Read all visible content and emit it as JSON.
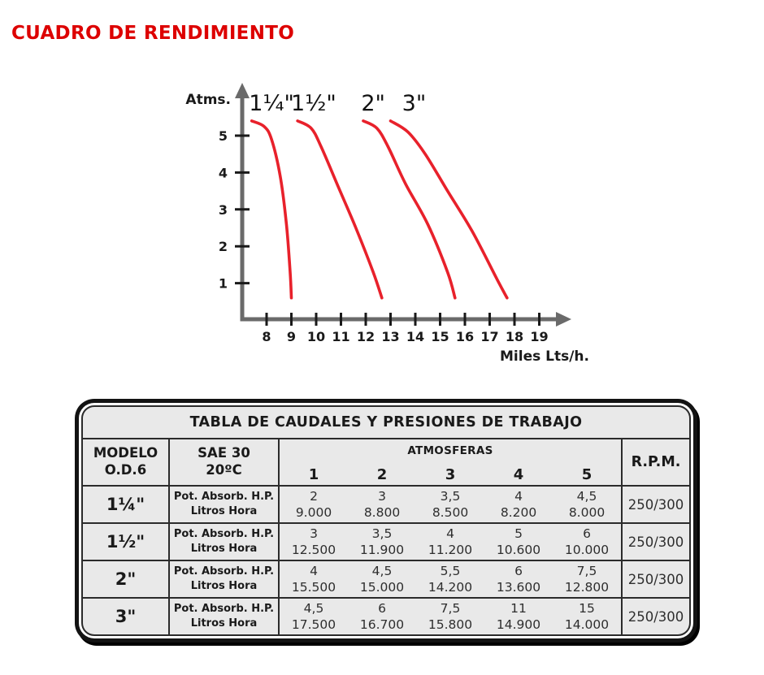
{
  "page": {
    "title": "CUADRO DE RENDIMIENTO"
  },
  "colors": {
    "accent_red": "#dd0000",
    "curve_red": "#e8212b",
    "axis_gray": "#6a6a6a",
    "text_dark": "#1a1a1a"
  },
  "chart_data": {
    "type": "line",
    "title": "",
    "ylabel": "Atms.",
    "xlabel": "Miles Lts/h.",
    "y_ticks": [
      1,
      2,
      3,
      4,
      5
    ],
    "x_ticks": [
      8,
      9,
      10,
      11,
      12,
      13,
      14,
      15,
      16,
      17,
      18,
      19
    ],
    "ylim": [
      0,
      5.8
    ],
    "xlim": [
      7,
      20
    ],
    "grid": false,
    "legend_position": "labels-above-curves",
    "series": [
      {
        "name": "1¼\"",
        "label_x": 8.2,
        "color": "#e8212b",
        "points": [
          [
            7.4,
            5.4
          ],
          [
            7.9,
            5.25
          ],
          [
            8.2,
            4.9
          ],
          [
            8.55,
            3.9
          ],
          [
            8.8,
            2.6
          ],
          [
            8.95,
            1.3
          ],
          [
            9.0,
            0.6
          ]
        ]
      },
      {
        "name": "1½\"",
        "label_x": 9.9,
        "color": "#e8212b",
        "points": [
          [
            9.25,
            5.4
          ],
          [
            9.8,
            5.2
          ],
          [
            10.2,
            4.7
          ],
          [
            10.9,
            3.6
          ],
          [
            11.6,
            2.5
          ],
          [
            12.3,
            1.3
          ],
          [
            12.65,
            0.6
          ]
        ]
      },
      {
        "name": "2\"",
        "label_x": 12.3,
        "color": "#e8212b",
        "points": [
          [
            11.9,
            5.4
          ],
          [
            12.45,
            5.2
          ],
          [
            12.9,
            4.7
          ],
          [
            13.6,
            3.7
          ],
          [
            14.5,
            2.6
          ],
          [
            15.3,
            1.3
          ],
          [
            15.6,
            0.6
          ]
        ]
      },
      {
        "name": "3\"",
        "label_x": 13.95,
        "color": "#e8212b",
        "points": [
          [
            13.0,
            5.4
          ],
          [
            13.7,
            5.1
          ],
          [
            14.4,
            4.5
          ],
          [
            15.3,
            3.5
          ],
          [
            16.3,
            2.4
          ],
          [
            17.3,
            1.1
          ],
          [
            17.7,
            0.6
          ]
        ]
      }
    ]
  },
  "table": {
    "title": "TABLA DE CAUDALES Y PRESIONES DE TRABAJO",
    "headers": {
      "modelo_line1": "MODELO",
      "modelo_line2": "O.D.6",
      "sae_line1": "SAE 30",
      "sae_line2": "20ºC",
      "atmosferas": "ATMOSFERAS",
      "atm_numbers": [
        "1",
        "2",
        "3",
        "4",
        "5"
      ],
      "rpm": "R.P.M."
    },
    "row_metric_line1": "Pot. Absorb. H.P.",
    "row_metric_line2": "Litros Hora",
    "rows": [
      {
        "modelo": "1¼\"",
        "hp": [
          "2",
          "3",
          "3,5",
          "4",
          "4,5"
        ],
        "litros": [
          "9.000",
          "8.800",
          "8.500",
          "8.200",
          "8.000"
        ],
        "rpm": "250/300"
      },
      {
        "modelo": "1½\"",
        "hp": [
          "3",
          "3,5",
          "4",
          "5",
          "6"
        ],
        "litros": [
          "12.500",
          "11.900",
          "11.200",
          "10.600",
          "10.000"
        ],
        "rpm": "250/300"
      },
      {
        "modelo": "2\"",
        "hp": [
          "4",
          "4,5",
          "5,5",
          "6",
          "7,5"
        ],
        "litros": [
          "15.500",
          "15.000",
          "14.200",
          "13.600",
          "12.800"
        ],
        "rpm": "250/300"
      },
      {
        "modelo": "3\"",
        "hp": [
          "4,5",
          "6",
          "7,5",
          "11",
          "15"
        ],
        "litros": [
          "17.500",
          "16.700",
          "15.800",
          "14.900",
          "14.000"
        ],
        "rpm": "250/300"
      }
    ]
  }
}
